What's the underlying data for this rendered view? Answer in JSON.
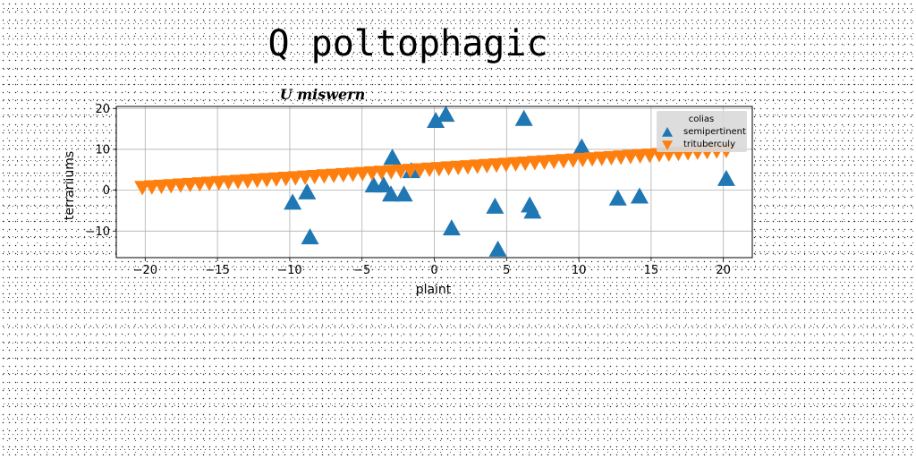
{
  "figure_title": "Q poltophagic",
  "chart_data": {
    "type": "scatter",
    "title": "U miswern",
    "xlabel": "plaint",
    "ylabel": "terrariiums",
    "xlim": [
      -22,
      22
    ],
    "ylim": [
      -16.5,
      20.5
    ],
    "xticks": [
      -20,
      -15,
      -10,
      -5,
      0,
      5,
      10,
      15,
      20
    ],
    "yticks": [
      -10,
      0,
      10,
      20
    ],
    "grid": true,
    "legend": {
      "title": "colias",
      "placement": "top-right",
      "entries": [
        "semipertinent",
        "trituberculy"
      ]
    },
    "series": [
      {
        "name": "semipertinent",
        "marker": "triangle-up",
        "color": "#1f77b4",
        "points": [
          [
            -9.8,
            -3
          ],
          [
            -8.8,
            -0.5
          ],
          [
            -8.6,
            -11.5
          ],
          [
            -4.2,
            1.2
          ],
          [
            -3.5,
            1.2
          ],
          [
            -3.0,
            -1
          ],
          [
            -2.9,
            8
          ],
          [
            -2.1,
            -1
          ],
          [
            -1.6,
            4.7
          ],
          [
            0.1,
            17
          ],
          [
            0.8,
            18.5
          ],
          [
            1.2,
            -9.3
          ],
          [
            4.2,
            -4
          ],
          [
            4.4,
            -14.5
          ],
          [
            6.2,
            17.5
          ],
          [
            6.6,
            -3.7
          ],
          [
            6.8,
            -5.2
          ],
          [
            10.2,
            10.5
          ],
          [
            12.7,
            -2
          ],
          [
            14.2,
            -1.5
          ],
          [
            20.2,
            2.8
          ]
        ]
      },
      {
        "name": "trituberculy",
        "marker": "triangle-down",
        "color": "#ff7f0e",
        "line": {
          "x_start": -20.2,
          "x_end": 20.2,
          "y_start": 0.7,
          "y_end": 9.8,
          "count": 62
        }
      }
    ]
  }
}
